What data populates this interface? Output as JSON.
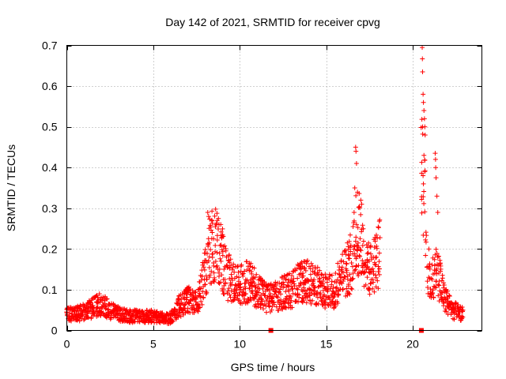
{
  "chart_data": {
    "type": "scatter",
    "title": "Day 142 of 2021, SRMTID for receiver cpvg",
    "xlabel": "GPS time / hours",
    "ylabel": "SRMTID / TECUs",
    "xlim": [
      0,
      24
    ],
    "ylim": [
      0,
      0.7
    ],
    "x_ticks": [
      0,
      5,
      10,
      15,
      20
    ],
    "x_tick_labels": [
      "0",
      "5",
      "10",
      "15",
      "20"
    ],
    "y_ticks": [
      0,
      0.1,
      0.2,
      0.3,
      0.4,
      0.5,
      0.6,
      0.7
    ],
    "y_tick_labels": [
      "0",
      "0.1",
      "0.2",
      "0.3",
      "0.4",
      "0.5",
      "0.6",
      "0.7"
    ],
    "grid": true,
    "marker": "plus",
    "color": "#ff0000",
    "gap_markers_x": [
      11.8,
      20.5
    ],
    "series": [
      {
        "name": "SRMTID",
        "profile_x": [
          0,
          0.5,
          1,
          1.5,
          2,
          2.5,
          3,
          3.5,
          4,
          4.5,
          5,
          5.5,
          6,
          6.5,
          7,
          7.5,
          8,
          8.3,
          8.6,
          8.9,
          9.2,
          9.5,
          10,
          10.5,
          11,
          11.5,
          12,
          12.5,
          13,
          13.5,
          14,
          14.5,
          15,
          15.5,
          16,
          16.5,
          16.8,
          17.1,
          17.4,
          17.7,
          18,
          18.1
        ],
        "profile_y": [
          0.04,
          0.04,
          0.045,
          0.055,
          0.065,
          0.05,
          0.04,
          0.035,
          0.035,
          0.035,
          0.035,
          0.03,
          0.03,
          0.06,
          0.075,
          0.065,
          0.14,
          0.2,
          0.22,
          0.19,
          0.14,
          0.12,
          0.11,
          0.12,
          0.1,
          0.08,
          0.08,
          0.095,
          0.1,
          0.12,
          0.12,
          0.11,
          0.095,
          0.1,
          0.14,
          0.17,
          0.25,
          0.2,
          0.15,
          0.16,
          0.18,
          0.19
        ],
        "profile2_x": [
          20.5,
          20.6,
          20.7,
          20.8,
          20.9,
          21,
          21.2,
          21.4,
          21.6,
          21.8,
          22,
          22.3,
          22.6,
          22.9
        ],
        "profile2_y": [
          0.4,
          0.38,
          0.3,
          0.22,
          0.16,
          0.13,
          0.13,
          0.15,
          0.12,
          0.09,
          0.07,
          0.05,
          0.045,
          0.04
        ],
        "spikes": [
          {
            "x": 16.7,
            "y": 0.45
          },
          {
            "x": 16.72,
            "y": 0.44
          },
          {
            "x": 16.75,
            "y": 0.41
          },
          {
            "x": 16.65,
            "y": 0.35
          },
          {
            "x": 17.0,
            "y": 0.32
          },
          {
            "x": 17.05,
            "y": 0.31
          },
          {
            "x": 20.55,
            "y": 0.695
          },
          {
            "x": 20.56,
            "y": 0.667
          },
          {
            "x": 20.57,
            "y": 0.635
          },
          {
            "x": 20.6,
            "y": 0.58
          },
          {
            "x": 20.62,
            "y": 0.56
          },
          {
            "x": 20.65,
            "y": 0.54
          },
          {
            "x": 20.68,
            "y": 0.52
          },
          {
            "x": 20.7,
            "y": 0.5
          },
          {
            "x": 20.72,
            "y": 0.48
          },
          {
            "x": 20.65,
            "y": 0.43
          },
          {
            "x": 20.7,
            "y": 0.39
          },
          {
            "x": 20.62,
            "y": 0.36
          },
          {
            "x": 21.3,
            "y": 0.435
          },
          {
            "x": 21.32,
            "y": 0.42
          },
          {
            "x": 21.33,
            "y": 0.4
          },
          {
            "x": 21.35,
            "y": 0.375
          },
          {
            "x": 21.4,
            "y": 0.33
          },
          {
            "x": 21.45,
            "y": 0.29
          },
          {
            "x": 8.15,
            "y": 0.29
          },
          {
            "x": 8.2,
            "y": 0.28
          },
          {
            "x": 8.7,
            "y": 0.27
          },
          {
            "x": 8.8,
            "y": 0.26
          }
        ]
      }
    ]
  }
}
